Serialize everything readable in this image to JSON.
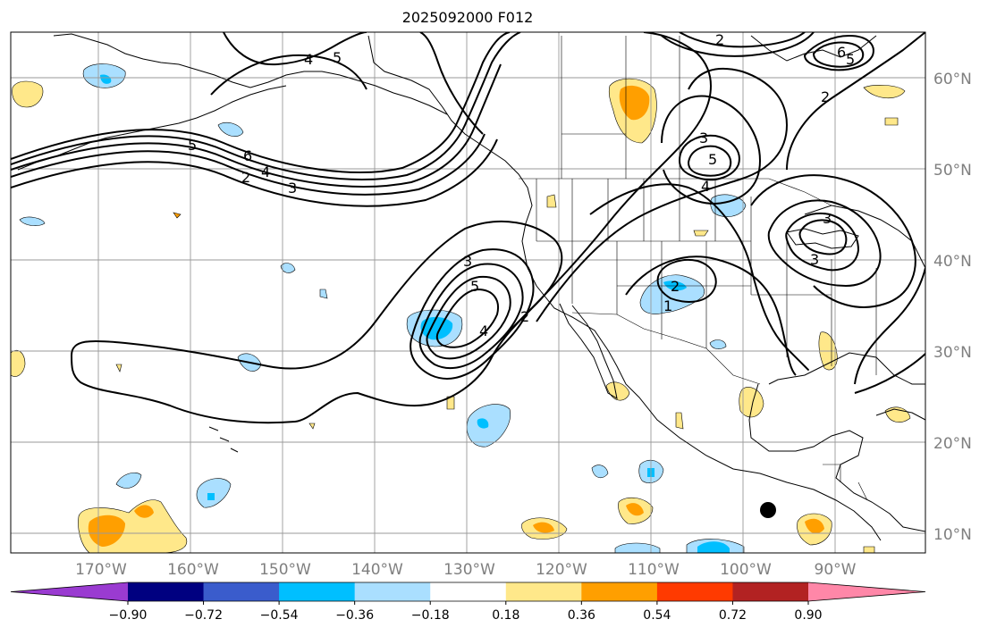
{
  "title": "2025092000 F012",
  "longitude_labels": [
    "170°W",
    "160°W",
    "150°W",
    "140°W",
    "130°W",
    "120°W",
    "110°W",
    "100°W",
    "90°W"
  ],
  "latitude_labels": [
    "60°N",
    "50°N",
    "40°N",
    "30°N",
    "20°N",
    "10°N"
  ],
  "colorbar": {
    "tick_labels": [
      "−0.90",
      "−0.72",
      "−0.54",
      "−0.36",
      "−0.18",
      "0.18",
      "0.36",
      "0.54",
      "0.72",
      "0.90"
    ],
    "colors": [
      "#9a3bd1",
      "#000080",
      "#3a5ccc",
      "#00bfff",
      "#aadfff",
      "#ffffff",
      "#ffe88a",
      "#ff9f00",
      "#ff3a00",
      "#b22222",
      "#ff87a8"
    ]
  },
  "contour_labels": [
    "5",
    "6",
    "4",
    "2",
    "3",
    "4",
    "5",
    "6",
    "5",
    "2",
    "3",
    "5",
    "4",
    "3",
    "2",
    "3",
    "5",
    "4",
    "2",
    "2",
    "1",
    "3"
  ],
  "marker": "station-dot"
}
